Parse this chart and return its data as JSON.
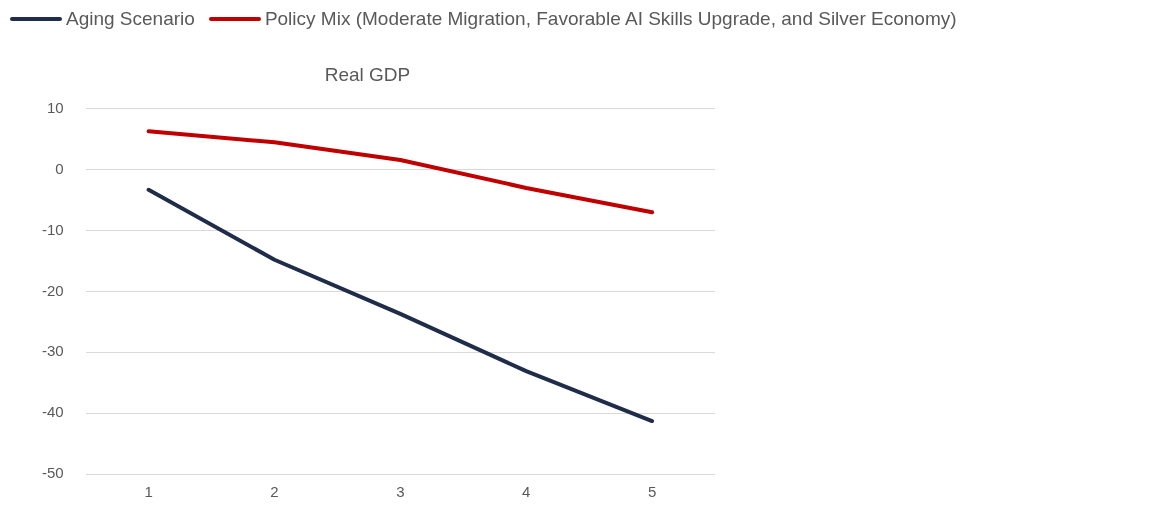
{
  "chart_data": {
    "type": "line",
    "title": "Real GDP",
    "categories": [
      "1",
      "2",
      "3",
      "4",
      "5"
    ],
    "series": [
      {
        "name": "Aging Scenario",
        "color": "#1f2d4a",
        "values": [
          -3.3,
          -14.8,
          -23.7,
          -33.1,
          -41.3
        ]
      },
      {
        "name": "Policy Mix (Moderate Migration, Favorable AI Skills Upgrade, and Silver Economy)",
        "color": "#c00000",
        "values": [
          6.3,
          4.5,
          1.6,
          -3.0,
          -7.0
        ]
      }
    ],
    "ylim": [
      -50,
      10
    ],
    "yticks": [
      -50,
      -40,
      -30,
      -20,
      -10,
      0,
      10
    ],
    "grid": "y",
    "legend": "top",
    "marker": "none",
    "line_style": "solid"
  }
}
